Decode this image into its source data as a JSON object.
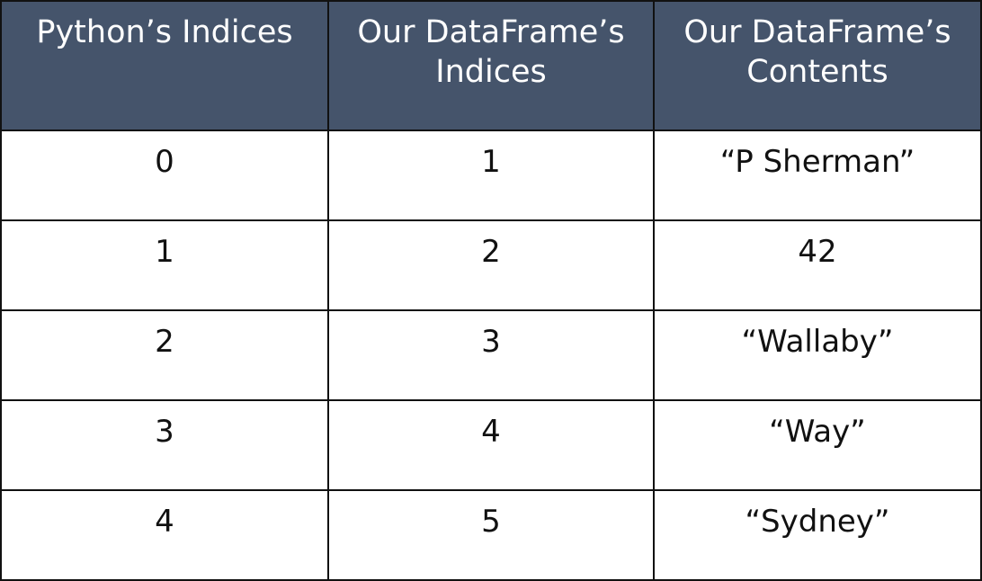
{
  "table": {
    "headers": [
      "Python’s Indices",
      "Our DataFrame’s Indices",
      "Our DataFrame’s Contents"
    ],
    "rows": [
      [
        "0",
        "1",
        "“P Sherman”"
      ],
      [
        "1",
        "2",
        "42"
      ],
      [
        "2",
        "3",
        "“Wallaby”"
      ],
      [
        "3",
        "4",
        "“Way”"
      ],
      [
        "4",
        "5",
        "“Sydney”"
      ]
    ]
  },
  "colors": {
    "header_background": "#45546b",
    "header_text": "#ffffff",
    "border": "#111111",
    "cell_text": "#111111"
  }
}
